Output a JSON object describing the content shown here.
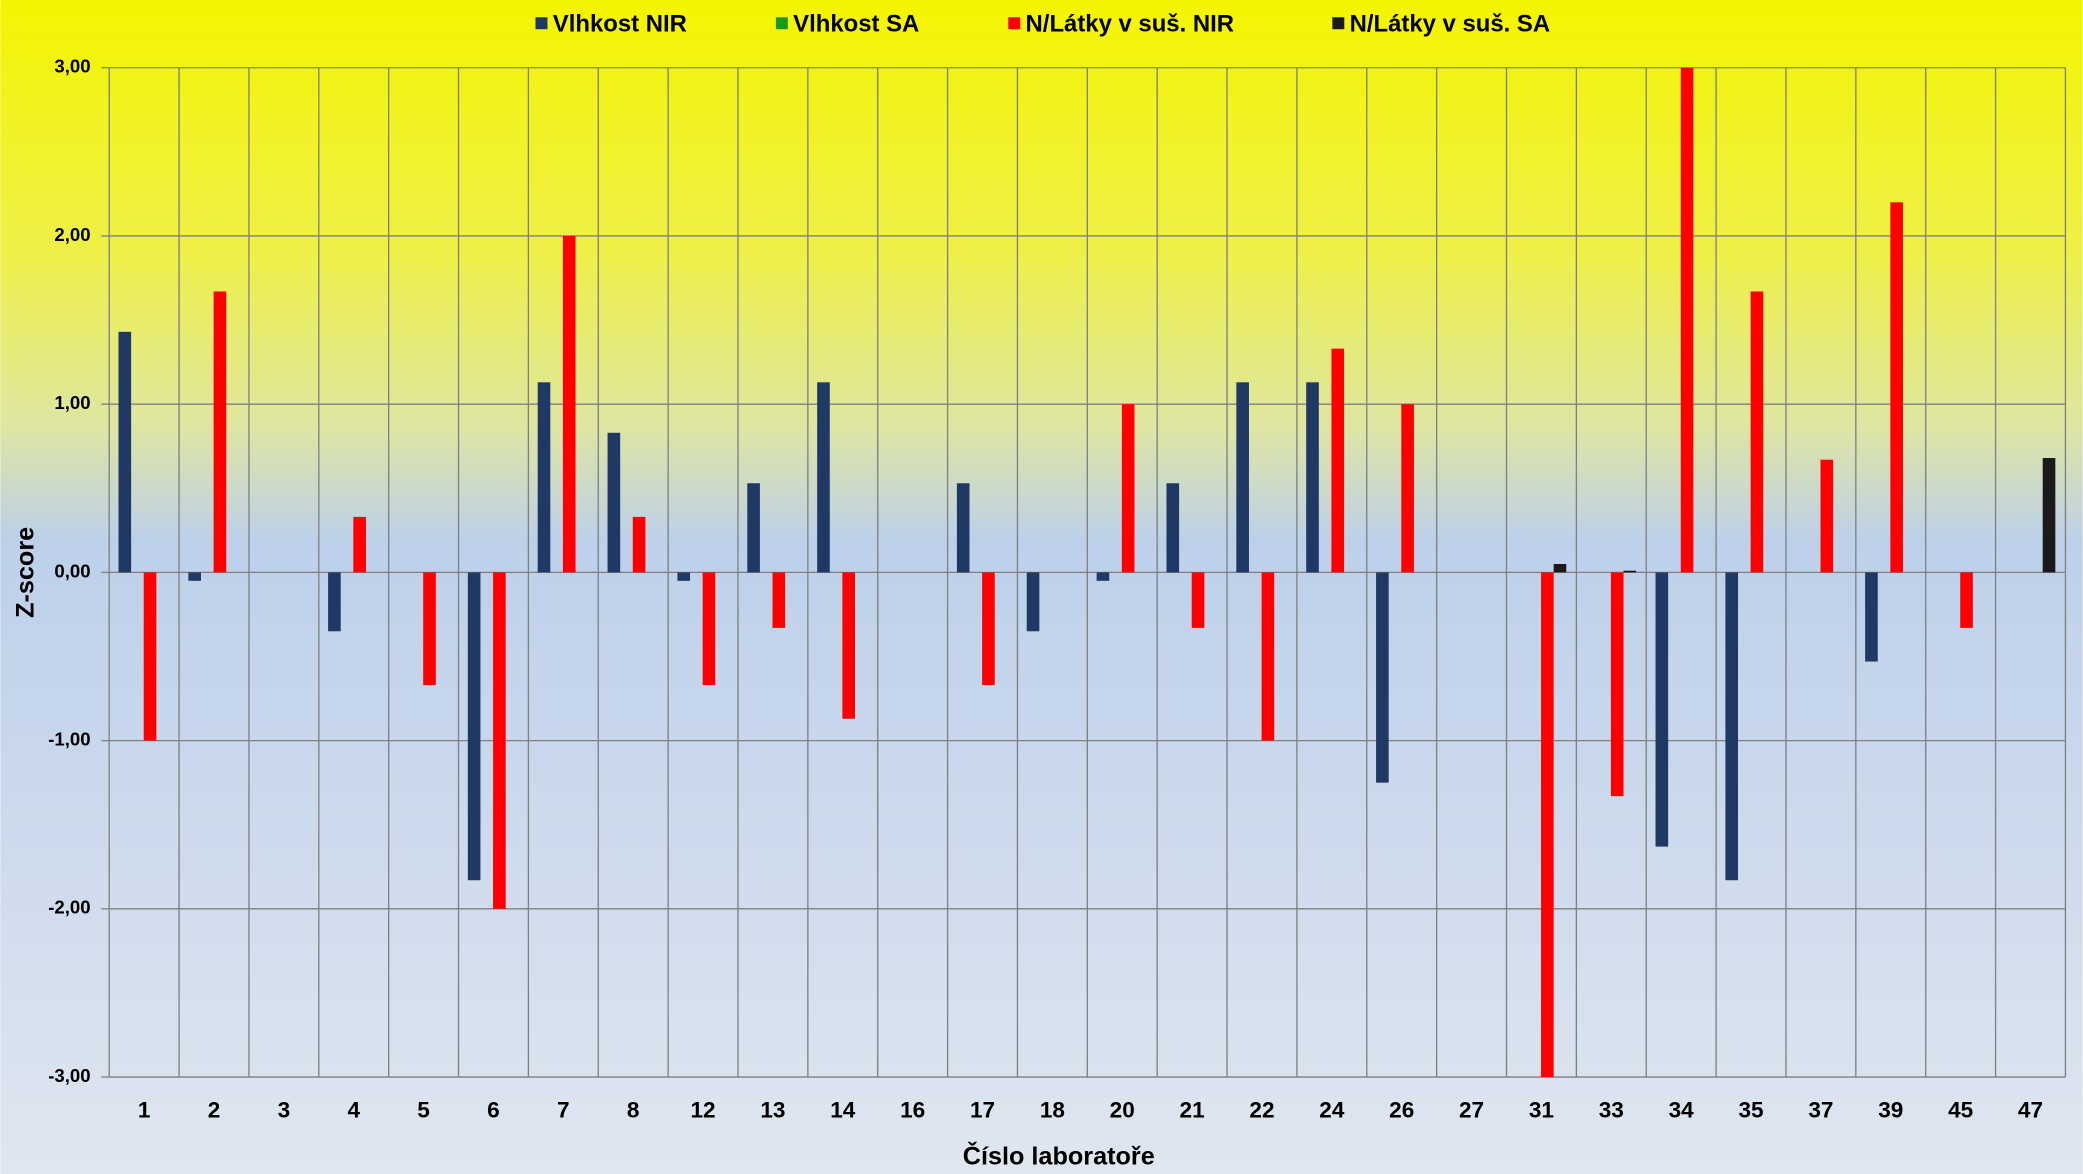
{
  "chart_data": {
    "type": "bar",
    "x_label": "Číslo laboratoře",
    "y_label": "Z-score",
    "categories": [
      "1",
      "2",
      "3",
      "4",
      "5",
      "6",
      "7",
      "8",
      "12",
      "13",
      "14",
      "16",
      "17",
      "18",
      "20",
      "21",
      "22",
      "24",
      "26",
      "27",
      "31",
      "33",
      "34",
      "35",
      "37",
      "39",
      "45",
      "47"
    ],
    "series": [
      {
        "name": "Vlhkost NIR",
        "color": "#1f3864",
        "values": [
          1.43,
          -0.05,
          null,
          -0.35,
          null,
          -1.83,
          1.13,
          0.83,
          -0.05,
          0.53,
          1.13,
          null,
          0.53,
          -0.35,
          -0.05,
          0.53,
          1.13,
          1.13,
          -1.25,
          null,
          null,
          null,
          -1.63,
          -1.83,
          null,
          -0.53,
          null,
          null
        ]
      },
      {
        "name": "Vlhkost SA",
        "color": "#1a9a1a",
        "values": [
          null,
          null,
          null,
          null,
          null,
          null,
          null,
          null,
          null,
          null,
          null,
          null,
          null,
          null,
          null,
          null,
          null,
          null,
          null,
          null,
          null,
          null,
          null,
          null,
          null,
          null,
          null,
          null
        ]
      },
      {
        "name": "N/Látky v suš. NIR",
        "color": "#ff0000",
        "values": [
          -1.0,
          1.67,
          null,
          0.33,
          -0.67,
          -2.0,
          2.0,
          0.33,
          -0.67,
          -0.33,
          -0.87,
          null,
          -0.67,
          null,
          1.0,
          -0.33,
          -1.0,
          1.33,
          1.0,
          null,
          -3.0,
          -1.33,
          3.0,
          1.67,
          0.67,
          2.2,
          -0.33,
          null
        ]
      },
      {
        "name": "N/Látky v suš. SA",
        "color": "#1a1a1a",
        "values": [
          null,
          null,
          null,
          null,
          null,
          null,
          null,
          null,
          null,
          null,
          null,
          null,
          null,
          null,
          null,
          null,
          null,
          null,
          null,
          null,
          0.05,
          0.01,
          null,
          null,
          null,
          null,
          null,
          0.68
        ]
      }
    ],
    "ylim": [
      -3,
      3
    ],
    "yticks": [
      {
        "value": -3,
        "label": "-3,00"
      },
      {
        "value": -2,
        "label": "-2,00"
      },
      {
        "value": -1,
        "label": "-1,00"
      },
      {
        "value": 0,
        "label": "0,00"
      },
      {
        "value": 1,
        "label": "1,00"
      },
      {
        "value": 2,
        "label": "2,00"
      },
      {
        "value": 3,
        "label": "3,00"
      }
    ],
    "grid": true,
    "legend": "top"
  }
}
